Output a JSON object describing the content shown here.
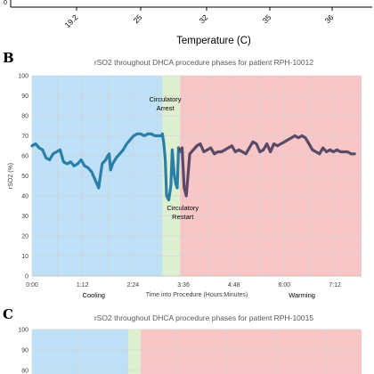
{
  "panel_a": {
    "xlabel": "Temperature (C)",
    "tick_labels": [
      "19.2",
      "25",
      "32",
      "35",
      "36"
    ],
    "y_tick_label": "0"
  },
  "panel_b": {
    "letter": "B"
  },
  "panel_c": {
    "letter": "C"
  },
  "chart_data": [
    {
      "type": "line",
      "title": "rSO2 throughout DHCA procedure phases for patient RPH-10012",
      "xlabel": "Time into Procedure (Hours:Minutes)",
      "ylabel": "rSO2 (%)",
      "ylim": [
        0,
        100
      ],
      "yticks": [
        "0",
        "10",
        "20",
        "30",
        "40",
        "50",
        "60",
        "70",
        "80",
        "90",
        "100"
      ],
      "x_tick_labels": [
        "0:00",
        "1:12",
        "2:24",
        "3:36",
        "4:48",
        "6:00",
        "7:12"
      ],
      "xlim_minutes": [
        0,
        470
      ],
      "grid": true,
      "phases": [
        {
          "name": "Cooling",
          "start_min": 0,
          "end_min": 186,
          "color": "#bfe1f7"
        },
        {
          "name": "Circulatory Arrest",
          "start_min": 186,
          "end_min": 211,
          "color": "#dff0d0"
        },
        {
          "name": "Warming",
          "start_min": 211,
          "end_min": 470,
          "color": "#f8c6c6"
        }
      ],
      "annotations": [
        {
          "text_lines": [
            "Circulatory",
            "Arrest"
          ]
        },
        {
          "text_lines": [
            "Circulatory",
            "Restart"
          ]
        }
      ],
      "phase_labels": [
        "Cooling",
        "Warming"
      ],
      "series": [
        {
          "color_cooling": "#2a7fa8",
          "color_warming": "#5a4a66",
          "x": [
            0,
            5,
            10,
            15,
            20,
            25,
            30,
            35,
            40,
            45,
            50,
            55,
            60,
            65,
            70,
            75,
            80,
            85,
            90,
            95,
            100,
            105,
            108,
            110,
            112,
            115,
            120,
            125,
            130,
            135,
            140,
            145,
            150,
            155,
            160,
            165,
            170,
            175,
            180,
            185,
            186,
            188,
            190,
            192,
            195,
            198,
            200,
            203,
            205,
            207,
            209,
            211,
            214,
            217,
            220,
            225,
            230,
            235,
            240,
            245,
            250,
            255,
            260,
            265,
            270,
            275,
            280,
            285,
            290,
            295,
            300,
            305,
            310,
            315,
            320,
            325,
            330,
            335,
            340,
            345,
            350,
            355,
            360,
            365,
            370,
            375,
            380,
            385,
            390,
            395,
            400,
            405,
            410,
            415,
            420,
            425,
            430,
            435,
            440,
            445,
            450,
            455,
            460
          ],
          "y": [
            65,
            66,
            64,
            63,
            59,
            58,
            61,
            62,
            63,
            57,
            56,
            57,
            55,
            56,
            58,
            55,
            54,
            52,
            48,
            44,
            56,
            58,
            60,
            61,
            53,
            56,
            59,
            61,
            63,
            66,
            68,
            70,
            71,
            71,
            70,
            71,
            71,
            70,
            70,
            70,
            71,
            66,
            58,
            40,
            38,
            45,
            63,
            50,
            46,
            44,
            64,
            62,
            64,
            44,
            40,
            61,
            63,
            65,
            66,
            62,
            63,
            64,
            61,
            62,
            62,
            63,
            64,
            65,
            62,
            63,
            62,
            61,
            64,
            67,
            66,
            62,
            63,
            66,
            62,
            66,
            65,
            66,
            67,
            68,
            69,
            70,
            69,
            70,
            69,
            66,
            63,
            62,
            61,
            64,
            62,
            63,
            62,
            63,
            62,
            62,
            62,
            61,
            61
          ]
        }
      ]
    },
    {
      "type": "line",
      "title": "rSO2 throughout DHCA procedure phases for patient RPH-10015",
      "yticks": [
        "100",
        "90",
        "80"
      ],
      "ylim": [
        0,
        100
      ],
      "grid": true
    }
  ]
}
